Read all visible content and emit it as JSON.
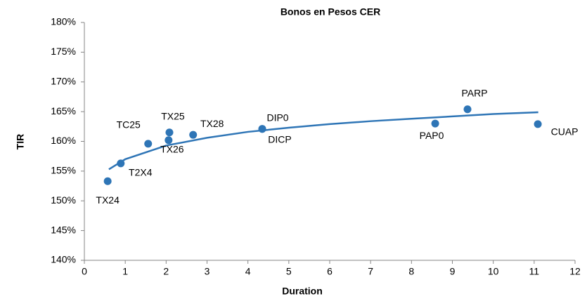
{
  "chart_data": {
    "type": "scatter",
    "title": "Bonos en Pesos CER",
    "xlabel": "Duration",
    "ylabel": "TIR",
    "labels": [
      "TX24",
      "T2X4",
      "TC25",
      "TX26",
      "TX25",
      "TX28",
      "DIP0",
      "DICP",
      "PAP0",
      "PARP",
      "CUAP"
    ],
    "x": [
      0.57,
      0.89,
      1.56,
      2.06,
      2.08,
      2.66,
      4.35,
      4.35,
      8.58,
      9.37,
      11.09
    ],
    "values": [
      153.3,
      156.3,
      159.6,
      160.2,
      161.5,
      161.1,
      162.1,
      162.1,
      163.0,
      165.4,
      162.9
    ],
    "color": "#2e75b6",
    "trendline": {
      "x": [
        0.6,
        1,
        2,
        3,
        4,
        5,
        6,
        7,
        8,
        9,
        10,
        11.1
      ],
      "values": [
        155.3,
        157.0,
        159.3,
        160.6,
        161.6,
        162.3,
        162.9,
        163.4,
        163.8,
        164.2,
        164.6,
        164.9
      ]
    },
    "xlim": [
      0,
      12
    ],
    "xticks": [
      0,
      1,
      2,
      3,
      4,
      5,
      6,
      7,
      8,
      9,
      10,
      11,
      12
    ],
    "ylim": [
      140,
      180
    ],
    "yticks": [
      {
        "value": 140,
        "label": "140%"
      },
      {
        "value": 145,
        "label": "145%"
      },
      {
        "value": 150,
        "label": "150%"
      },
      {
        "value": 155,
        "label": "155%"
      },
      {
        "value": 160,
        "label": "160%"
      },
      {
        "value": 165,
        "label": "165%"
      },
      {
        "value": 170,
        "label": "170%"
      },
      {
        "value": 175,
        "label": "175%"
      },
      {
        "value": 180,
        "label": "180%"
      }
    ],
    "grid": false
  }
}
